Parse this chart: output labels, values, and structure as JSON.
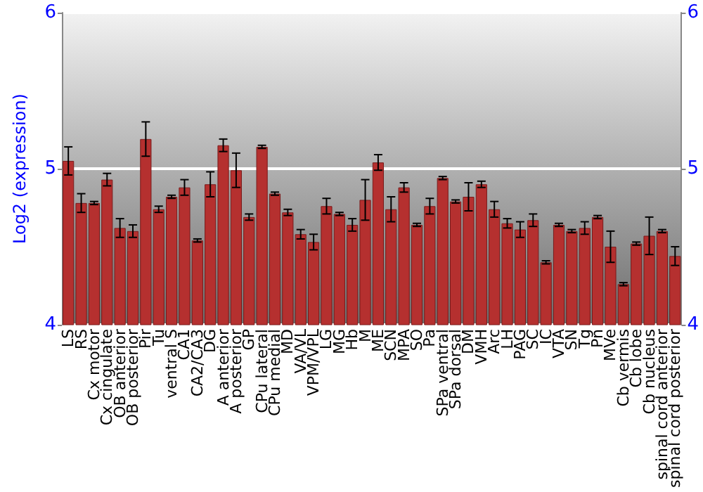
{
  "chart_data": {
    "type": "bar",
    "ylabel": "Log2 (expression)",
    "categories": [
      "LS",
      "RS",
      "Cx motor",
      "Cx cingulate",
      "OB anterior",
      "OB posterior",
      "Pir",
      "Tu",
      "ventral S",
      "CA1",
      "CA2/CA3",
      "DG",
      "A anterior",
      "A posterior",
      "GP",
      "CPu lateral",
      "CPu medial",
      "MD",
      "VA/VL",
      "VPM/VPL",
      "LG",
      "MG",
      "Hb",
      "M",
      "ME",
      "SCN",
      "MPA",
      "SO",
      "Pa",
      "SPa ventral",
      "SPa dorsal",
      "DM",
      "VMH",
      "Arc",
      "LH",
      "PAG",
      "SC",
      "IC",
      "VTA",
      "SN",
      "Tg",
      "Pn",
      "MVe",
      "Cb vermis",
      "Cb lobe",
      "Cb nucleus",
      "spinal cord anterior",
      "spinal cord posterior"
    ],
    "values": [
      5.05,
      4.78,
      4.78,
      4.93,
      4.62,
      4.6,
      5.19,
      4.74,
      4.82,
      4.88,
      4.54,
      4.9,
      5.15,
      4.99,
      4.69,
      5.14,
      4.84,
      4.72,
      4.58,
      4.53,
      4.76,
      4.71,
      4.64,
      4.8,
      5.04,
      4.74,
      4.88,
      4.64,
      4.76,
      4.94,
      4.79,
      4.82,
      4.9,
      4.74,
      4.65,
      4.61,
      4.67,
      4.4,
      4.64,
      4.6,
      4.62,
      4.69,
      4.5,
      4.26,
      4.52,
      4.57,
      4.6,
      4.44
    ],
    "errors": [
      0.09,
      0.06,
      0.01,
      0.04,
      0.06,
      0.04,
      0.11,
      0.02,
      0.01,
      0.05,
      0.01,
      0.08,
      0.04,
      0.11,
      0.02,
      0.01,
      0.01,
      0.02,
      0.03,
      0.05,
      0.05,
      0.01,
      0.04,
      0.13,
      0.05,
      0.08,
      0.03,
      0.01,
      0.05,
      0.01,
      0.01,
      0.09,
      0.02,
      0.05,
      0.03,
      0.05,
      0.04,
      0.01,
      0.01,
      0.01,
      0.04,
      0.01,
      0.1,
      0.01,
      0.01,
      0.12,
      0.01,
      0.06
    ],
    "color": "#b5302f",
    "ylim": [
      4,
      6
    ],
    "yticks": [
      4,
      5,
      6
    ],
    "y2lim": [
      4,
      6
    ],
    "y2ticks": [
      4,
      5,
      6
    ],
    "grid": "y"
  }
}
